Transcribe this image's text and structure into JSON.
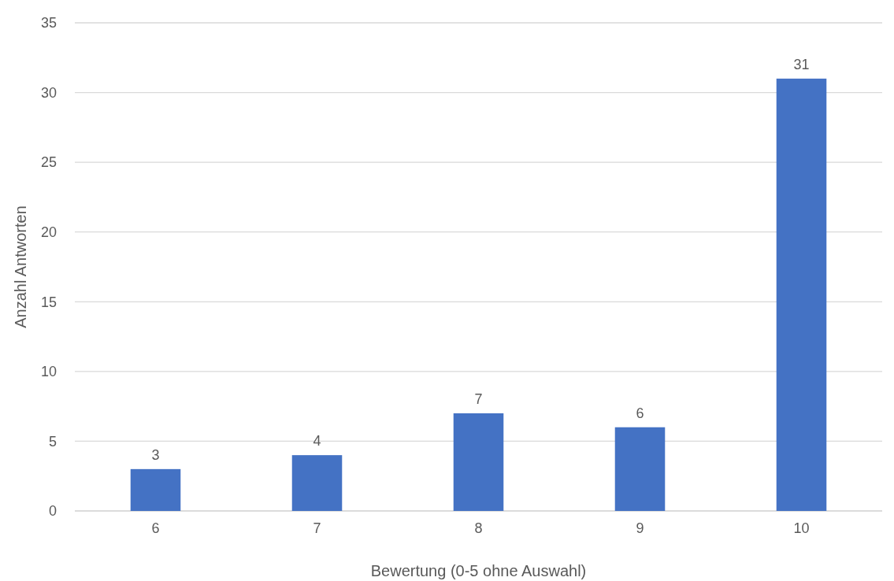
{
  "chart_data": {
    "type": "bar",
    "xlabel": "Bewertung (0-5 ohne Auswahl)",
    "ylabel": "Anzahl Antworten",
    "categories": [
      "6",
      "7",
      "8",
      "9",
      "10"
    ],
    "values": [
      3,
      4,
      7,
      6,
      31
    ],
    "color": "#4472c4",
    "ylim": [
      0,
      35
    ],
    "yticks": [
      0,
      5,
      10,
      15,
      20,
      25,
      30,
      35
    ],
    "grid": "y",
    "data_labels": true
  }
}
